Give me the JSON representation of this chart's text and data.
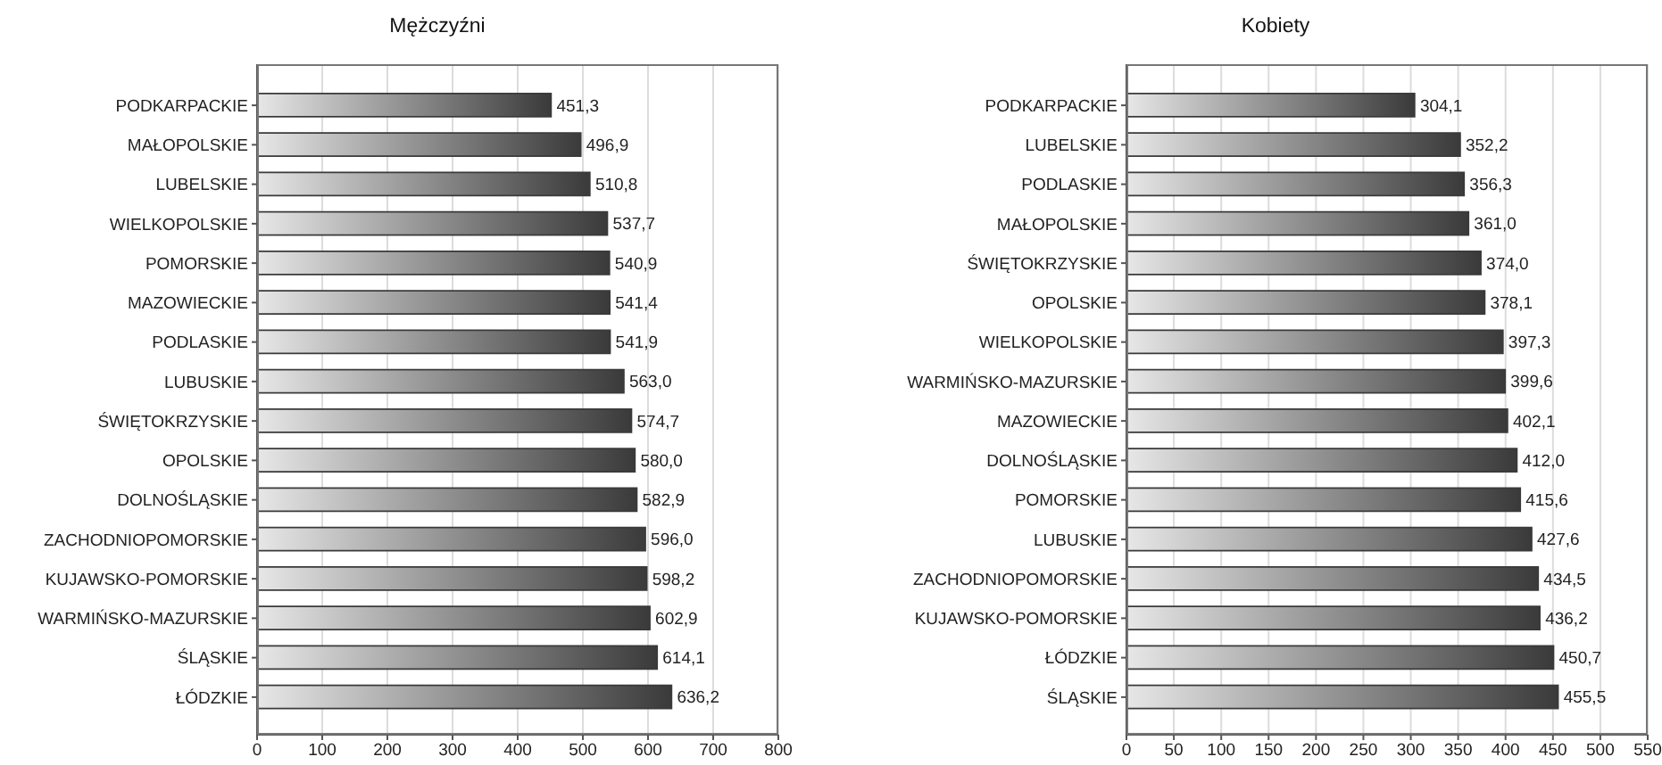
{
  "chart_data": [
    {
      "type": "bar",
      "orientation": "horizontal",
      "title": "Mężczyźni",
      "categories": [
        "PODKARPACKIE",
        "MAŁOPOLSKIE",
        "LUBELSKIE",
        "WIELKOPOLSKIE",
        "POMORSKIE",
        "MAZOWIECKIE",
        "PODLASKIE",
        "LUBUSKIE",
        "ŚWIĘTOKRZYSKIE",
        "OPOLSKIE",
        "DOLNOŚLĄSKIE",
        "ZACHODNIOPOMORSKIE",
        "KUJAWSKO-POMORSKIE",
        "WARMIŃSKO-MAZURSKIE",
        "ŚLĄSKIE",
        "ŁÓDZKIE"
      ],
      "values": [
        451.3,
        496.9,
        510.8,
        537.7,
        540.9,
        541.4,
        541.9,
        563.0,
        574.7,
        580.0,
        582.9,
        596.0,
        598.2,
        602.9,
        614.1,
        636.2
      ],
      "value_labels": [
        "451,3",
        "496,9",
        "510,8",
        "537,7",
        "540,9",
        "541,4",
        "541,9",
        "563,0",
        "574,7",
        "580,0",
        "582,9",
        "596,0",
        "598,2",
        "602,9",
        "614,1",
        "636,2"
      ],
      "color": "#3a3a3a",
      "xlim": [
        0,
        800
      ],
      "xticks": [
        0,
        100,
        200,
        300,
        400,
        500,
        600,
        700,
        800
      ],
      "grid": "x"
    },
    {
      "type": "bar",
      "orientation": "horizontal",
      "title": "Kobiety",
      "categories": [
        "PODKARPACKIE",
        "LUBELSKIE",
        "PODLASKIE",
        "MAŁOPOLSKIE",
        "ŚWIĘTOKRZYSKIE",
        "OPOLSKIE",
        "WIELKOPOLSKIE",
        "WARMIŃSKO-MAZURSKIE",
        "MAZOWIECKIE",
        "DOLNOŚLĄSKIE",
        "POMORSKIE",
        "LUBUSKIE",
        "ZACHODNIOPOMORSKIE",
        "KUJAWSKO-POMORSKIE",
        "ŁÓDZKIE",
        "ŚLĄSKIE"
      ],
      "values": [
        304.1,
        352.2,
        356.3,
        361.0,
        374.0,
        378.1,
        397.3,
        399.6,
        402.1,
        412.0,
        415.6,
        427.6,
        434.5,
        436.2,
        450.7,
        455.5
      ],
      "value_labels": [
        "304,1",
        "352,2",
        "356,3",
        "361,0",
        "374,0",
        "378,1",
        "397,3",
        "399,6",
        "402,1",
        "412,0",
        "415,6",
        "427,6",
        "434,5",
        "436,2",
        "450,7",
        "455,5"
      ],
      "color": "#3a3a3a",
      "xlim": [
        0,
        550
      ],
      "xticks": [
        0,
        50,
        100,
        150,
        200,
        250,
        300,
        350,
        400,
        450,
        500,
        550
      ],
      "grid": "x"
    }
  ]
}
